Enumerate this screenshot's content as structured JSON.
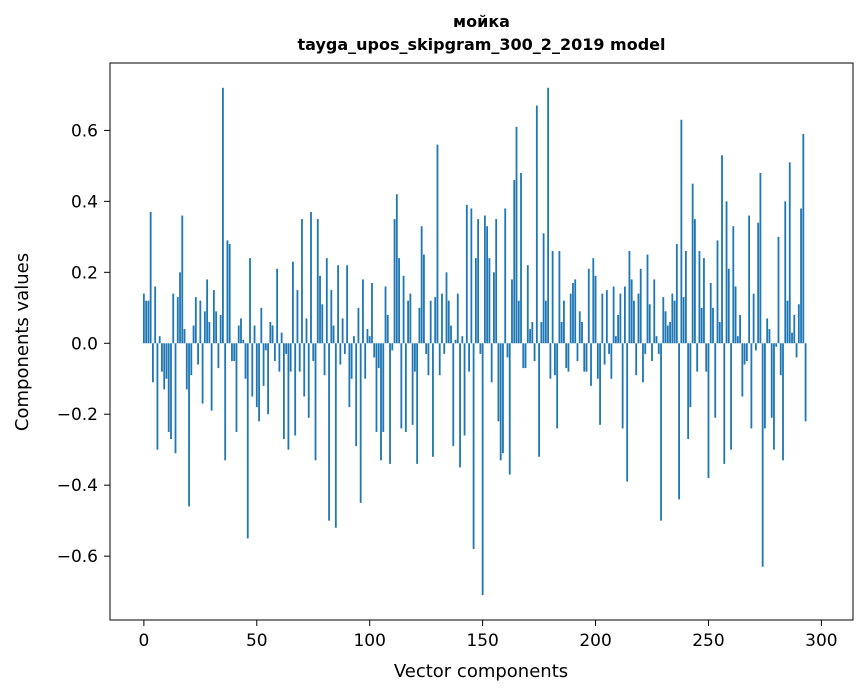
{
  "chart_data": {
    "type": "bar",
    "title": "мойка",
    "subtitle": "tayga_upos_skipgram_300_2_2019 model",
    "xlabel": "Vector components",
    "ylabel": "Components values",
    "xlim": [
      -15,
      314
    ],
    "ylim": [
      -0.78,
      0.79
    ],
    "xticks": [
      0,
      50,
      100,
      150,
      200,
      250,
      300
    ],
    "yticks": [
      -0.6,
      -0.4,
      -0.2,
      0.0,
      0.2,
      0.4,
      0.6
    ],
    "ytick_labels": [
      "−0.6",
      "−0.4",
      "−0.2",
      "0.0",
      "0.2",
      "0.4",
      "0.6"
    ],
    "grid": false,
    "color": "#1f77b4",
    "x": "components 0–299",
    "values": [
      0.14,
      0.12,
      0.12,
      0.37,
      -0.11,
      0.16,
      -0.3,
      0.02,
      -0.08,
      -0.13,
      -0.1,
      -0.25,
      -0.27,
      0.14,
      -0.31,
      0.13,
      0.2,
      0.36,
      0.04,
      -0.13,
      -0.46,
      -0.09,
      0.05,
      0.13,
      -0.06,
      0.12,
      -0.17,
      0.09,
      0.18,
      0.06,
      -0.19,
      0.15,
      0.09,
      -0.07,
      0.08,
      0.72,
      -0.33,
      0.29,
      0.28,
      -0.05,
      -0.05,
      -0.25,
      0.05,
      0.07,
      0.01,
      -0.1,
      -0.55,
      0.24,
      -0.15,
      0.05,
      -0.18,
      -0.22,
      0.1,
      -0.12,
      -0.02,
      -0.2,
      0.06,
      0.05,
      -0.05,
      0.21,
      -0.08,
      0.03,
      -0.27,
      -0.03,
      -0.3,
      -0.08,
      0.23,
      -0.26,
      0.15,
      -0.08,
      0.35,
      -0.15,
      0.07,
      -0.21,
      0.37,
      -0.05,
      -0.33,
      0.35,
      0.19,
      0.11,
      -0.09,
      0.24,
      -0.5,
      0.15,
      0.05,
      -0.52,
      0.22,
      -0.06,
      0.07,
      -0.03,
      0.22,
      -0.18,
      -0.1,
      0.02,
      -0.29,
      0.1,
      -0.45,
      0.18,
      -0.1,
      0.04,
      0.02,
      0.17,
      -0.04,
      -0.25,
      -0.07,
      -0.33,
      -0.25,
      0.16,
      0.08,
      -0.34,
      -0.02,
      0.35,
      0.42,
      0.24,
      -0.24,
      0.19,
      -0.25,
      0.12,
      0.14,
      -0.23,
      -0.08,
      -0.34,
      0.1,
      0.33,
      0.25,
      -0.03,
      -0.09,
      0.12,
      -0.32,
      0.13,
      0.56,
      -0.09,
      0.14,
      -0.03,
      0.2,
      0.12,
      0.05,
      -0.29,
      0.01,
      0.14,
      -0.35,
      0.02,
      -0.26,
      0.39,
      -0.08,
      0.38,
      -0.58,
      0.24,
      0.35,
      -0.03,
      -0.71,
      0.36,
      0.33,
      0.24,
      -0.11,
      0.2,
      0.35,
      -0.22,
      -0.33,
      -0.31,
      0.38,
      -0.04,
      -0.37,
      0.18,
      0.46,
      0.61,
      0.12,
      0.48,
      -0.07,
      -0.07,
      0.22,
      0.04,
      0.06,
      -0.05,
      0.67,
      -0.32,
      0.06,
      0.31,
      0.12,
      0.72,
      -0.1,
      0.26,
      -0.09,
      -0.24,
      0.26,
      0.06,
      0.12,
      -0.07,
      -0.08,
      0.14,
      0.17,
      0.18,
      -0.05,
      0.09,
      0.06,
      -0.08,
      -0.08,
      0.21,
      -0.12,
      0.24,
      0.19,
      -0.1,
      -0.23,
      0.14,
      -0.06,
      0.15,
      -0.03,
      -0.1,
      0.16,
      0.02,
      0.08,
      0.14,
      -0.24,
      0.16,
      -0.39,
      0.26,
      0.18,
      0.12,
      -0.09,
      0.14,
      0.21,
      -0.11,
      -0.03,
      0.25,
      0.11,
      -0.05,
      0.18,
      0.02,
      -0.03,
      -0.5,
      0.13,
      0.09,
      0.05,
      0.06,
      0.14,
      0.12,
      0.28,
      -0.44,
      0.63,
      0.13,
      0.26,
      -0.27,
      -0.18,
      0.45,
      0.35,
      -0.08,
      0.26,
      0.1,
      0.24,
      -0.08,
      -0.38,
      0.17,
      0.1,
      -0.21,
      0.29,
      0.06,
      0.53,
      -0.34,
      0.4,
      0.21,
      -0.3,
      0.33,
      0.16,
      0.02,
      0.08,
      -0.15,
      -0.06,
      -0.05,
      0.36,
      -0.24,
      0.14,
      -0.02,
      0.34,
      0.48,
      -0.63,
      -0.24,
      0.07,
      0.04,
      -0.21,
      -0.3,
      -0.01,
      0.3,
      -0.09,
      -0.33,
      0.4,
      0.12,
      0.51,
      0.03,
      0.08,
      -0.04,
      0.11,
      0.38,
      0.59,
      -0.22
    ]
  }
}
